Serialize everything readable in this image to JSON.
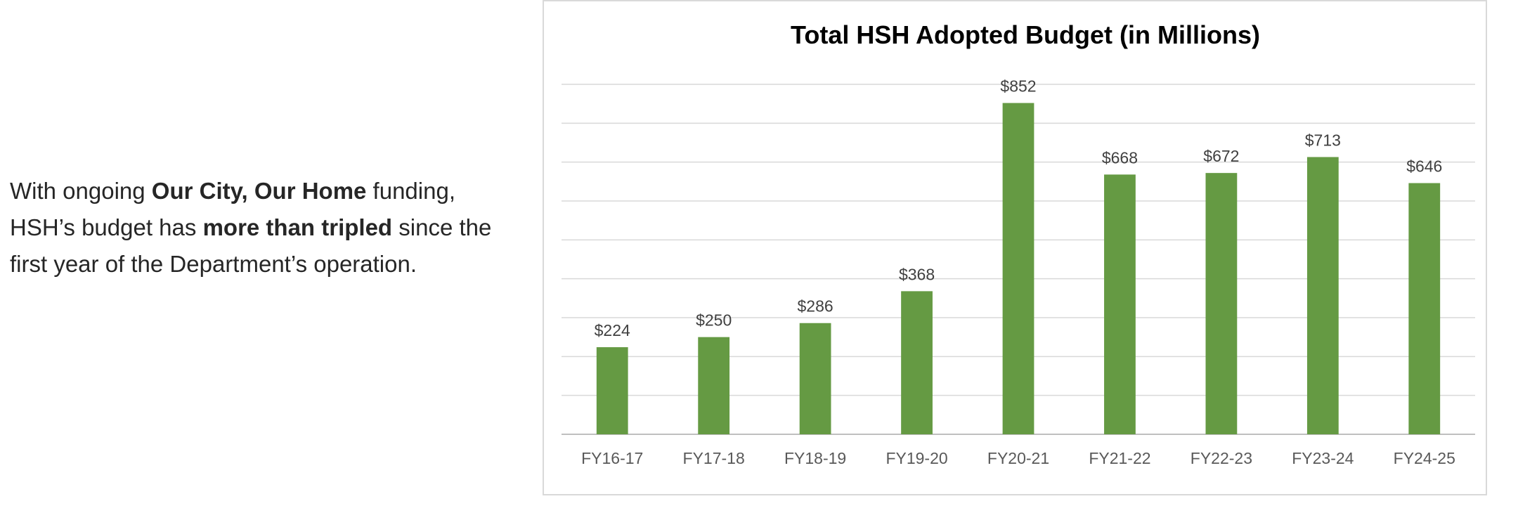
{
  "intro": {
    "part1": "With ongoing ",
    "bold1": "Our City, Our Home",
    "part2": " funding, HSH’s budget has ",
    "bold2": "more than tripled",
    "part3": " since the first year of the Department’s operation."
  },
  "colors": {
    "bar": "#659a43",
    "gridline": "#d9d9d9",
    "axis": "#bfbfbf"
  },
  "chart_data": {
    "type": "bar",
    "title": "Total HSH Adopted Budget (in Millions)",
    "xlabel": "",
    "ylabel": "",
    "categories": [
      "FY16-17",
      "FY17-18",
      "FY18-19",
      "FY19-20",
      "FY20-21",
      "FY21-22",
      "FY22-23",
      "FY23-24",
      "FY24-25"
    ],
    "values": [
      224,
      250,
      286,
      368,
      852,
      668,
      672,
      713,
      646
    ],
    "data_labels": [
      "$224",
      "$250",
      "$286",
      "$368",
      "$852",
      "$668",
      "$672",
      "$713",
      "$646"
    ],
    "ylim": [
      0,
      900
    ],
    "grid": true,
    "legend": "none"
  }
}
